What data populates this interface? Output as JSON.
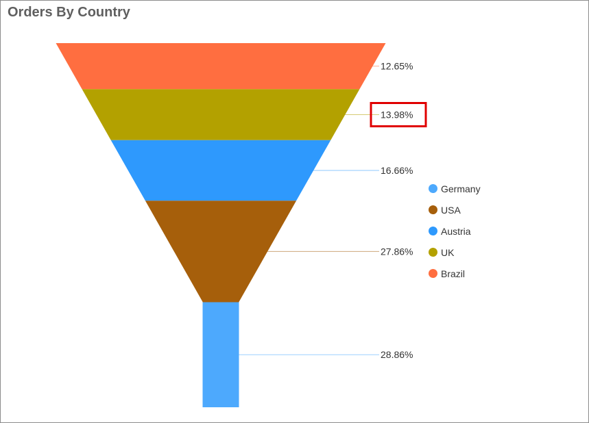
{
  "title": "Orders By Country",
  "chart_data": {
    "type": "funnel",
    "title": "Orders By Country",
    "categories": [
      "Brazil",
      "UK",
      "Austria",
      "USA",
      "Germany"
    ],
    "values": [
      12.65,
      13.98,
      16.66,
      27.86,
      28.86
    ],
    "value_labels": [
      "12.65%",
      "13.98%",
      "16.66%",
      "27.86%",
      "28.86%"
    ],
    "colors": [
      "#ff6e40",
      "#b3a100",
      "#2e99fd",
      "#a65f0b",
      "#4da9fd"
    ],
    "highlighted": "UK",
    "legend_position": "right"
  },
  "legend": {
    "items": [
      {
        "label": "Germany",
        "color": "#4da9fd"
      },
      {
        "label": "USA",
        "color": "#a65f0b"
      },
      {
        "label": "Austria",
        "color": "#2e99fd"
      },
      {
        "label": "UK",
        "color": "#b3a100"
      },
      {
        "label": "Brazil",
        "color": "#ff6e40"
      }
    ]
  }
}
